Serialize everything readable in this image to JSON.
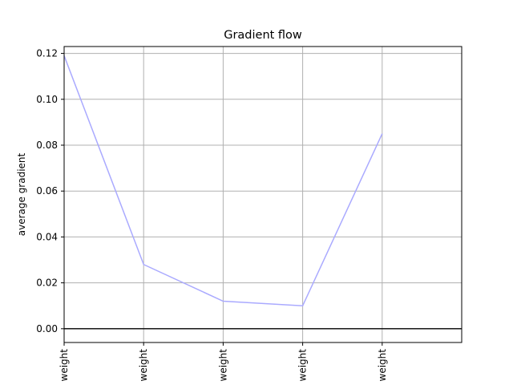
{
  "chart_data": {
    "type": "line",
    "title": "Gradient flow",
    "xlabel": "",
    "ylabel": "average gradient",
    "categories": [
      "weight",
      "weight",
      "weight",
      "weight",
      "weight"
    ],
    "series": [
      {
        "values": [
          0.119,
          0.028,
          0.012,
          0.01,
          0.085
        ],
        "color": "#aaaaff"
      }
    ],
    "ylim": [
      -0.006,
      0.123
    ],
    "xlim": [
      0,
      5
    ],
    "yticks": [
      "0.00",
      "0.02",
      "0.04",
      "0.06",
      "0.08",
      "0.10",
      "0.12"
    ],
    "grid": true,
    "zero_line": true,
    "colors": {
      "line": "#aaaaff",
      "grid": "#b0b0b0",
      "zero_line": "#000000"
    }
  }
}
